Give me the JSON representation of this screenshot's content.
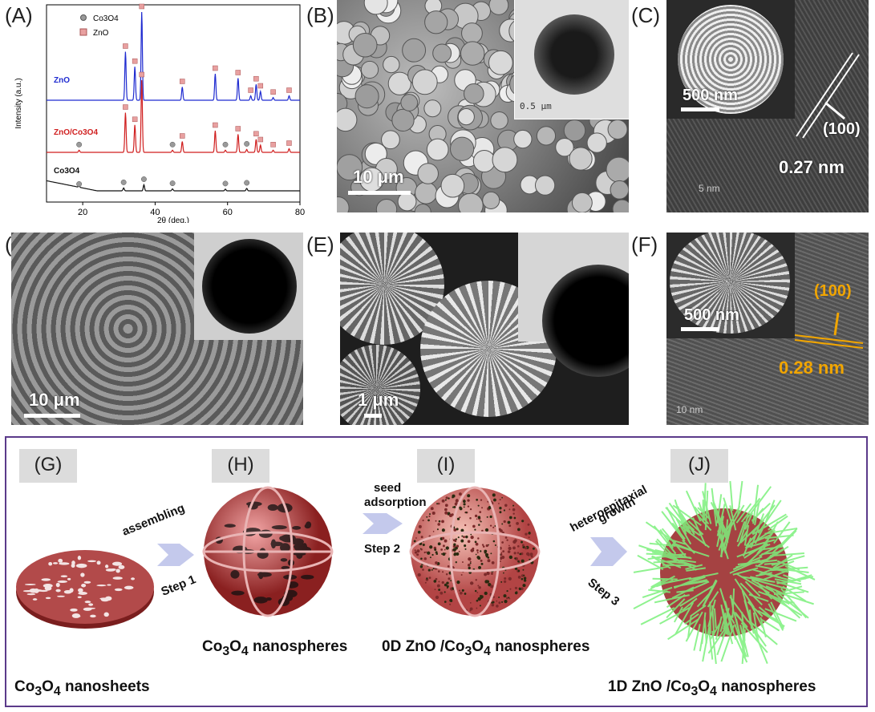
{
  "panels": {
    "A": {
      "label": "(A)"
    },
    "B": {
      "label": "(B)",
      "scale": "10 μm",
      "inset_scale": "0.5 μm"
    },
    "C": {
      "label": "(C)",
      "inset_scale": "500 nm",
      "plane": "(100)",
      "spacing": "0.27 nm",
      "scale": "5 nm"
    },
    "D": {
      "label": "(D)",
      "scale": "10 μm"
    },
    "E": {
      "label": "(E)",
      "scale": "1 μm"
    },
    "F": {
      "label": "(F)",
      "inset_scale": "500 nm",
      "plane": "(100)",
      "spacing": "0.28 nm",
      "scale": "10 nm"
    },
    "G": {
      "label": "(G)",
      "caption_main": "Co",
      "caption_sub": "3",
      "caption_o": "O",
      "caption_sub2": "4",
      "caption_tail": " nanosheets"
    },
    "H": {
      "label": "(H)",
      "caption_main": "Co",
      "caption_sub": "3",
      "caption_o": "O",
      "caption_sub2": "4",
      "caption_tail": " nanospheres"
    },
    "I": {
      "label": "(I)",
      "caption_main": "0D ZnO /Co",
      "caption_sub": "3",
      "caption_o": "O",
      "caption_sub2": "4",
      "caption_tail": " nanospheres"
    },
    "J": {
      "label": "(J)",
      "caption_main": "1D ZnO /Co",
      "caption_sub": "3",
      "caption_o": "O",
      "caption_sub2": "4",
      "caption_tail": " nanospheres"
    }
  },
  "steps": {
    "s1_top": "assembling",
    "s1": "Step 1",
    "s2_top1": "seed",
    "s2_top2": "adsorption",
    "s2": "Step 2",
    "s3_top1": "heteroepitaxial",
    "s3_top2": "growth",
    "s3": "Step 3"
  },
  "colors": {
    "zno": "#1f2bd0",
    "composite": "#d01f1f",
    "co3o4": "#111111",
    "frame": "#5b3a8a",
    "marker_co": "#9a9a9a",
    "marker_zn": "#e8a0a0"
  },
  "chart_data": {
    "type": "line",
    "xlabel": "2θ (deg.)",
    "ylabel": "Intensity (a.u.)",
    "xlim": [
      10,
      80
    ],
    "xticks": [
      20,
      40,
      60,
      80
    ],
    "legend": [
      {
        "name": "Co3O4",
        "marker": "circle"
      },
      {
        "name": "ZnO",
        "marker": "square"
      }
    ],
    "series": [
      {
        "name": "ZnO",
        "color": "#1f2bd0",
        "peaks": [
          31.8,
          34.4,
          36.3,
          47.5,
          56.6,
          62.9,
          66.4,
          67.9,
          69.1,
          72.6,
          77.0
        ],
        "heights": [
          0.55,
          0.38,
          1.0,
          0.15,
          0.3,
          0.25,
          0.05,
          0.18,
          0.1,
          0.03,
          0.05
        ]
      },
      {
        "name": "ZnO/Co3O4",
        "color": "#d01f1f",
        "peaks": [
          19.0,
          31.8,
          34.4,
          36.3,
          44.8,
          47.5,
          56.6,
          59.4,
          62.9,
          65.3,
          67.9,
          69.1,
          72.6,
          77.0
        ],
        "heights": [
          0.03,
          0.55,
          0.38,
          1.0,
          0.03,
          0.15,
          0.3,
          0.03,
          0.25,
          0.04,
          0.18,
          0.1,
          0.03,
          0.05
        ]
      },
      {
        "name": "Co3O4",
        "color": "#111111",
        "peaks": [
          19.0,
          31.3,
          36.9,
          44.8,
          59.4,
          65.3
        ],
        "heights": [
          0.05,
          0.12,
          0.25,
          0.08,
          0.07,
          0.1
        ]
      }
    ],
    "series_labels": [
      "ZnO",
      "ZnO/Co3O4",
      "Co3O4"
    ]
  }
}
